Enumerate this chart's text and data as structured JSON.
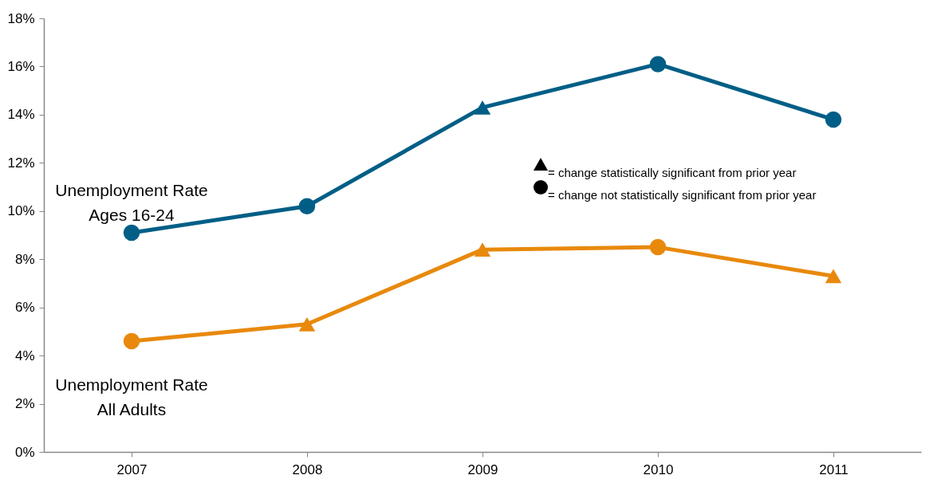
{
  "chart_data": {
    "type": "line",
    "categories": [
      "2007",
      "2008",
      "2009",
      "2010",
      "2011"
    ],
    "series": [
      {
        "name": "Unemployment Rate\nAges 16-24",
        "color": "#005e86",
        "values": [
          9.1,
          10.2,
          14.3,
          16.1,
          13.8
        ],
        "marker": [
          "circle",
          "circle",
          "triangle",
          "circle",
          "circle"
        ]
      },
      {
        "name": "Unemployment Rate\nAll Adults",
        "color": "#e8890c",
        "values": [
          4.6,
          5.3,
          8.4,
          8.5,
          7.3
        ],
        "marker": [
          "circle",
          "triangle",
          "triangle",
          "circle",
          "triangle"
        ]
      }
    ],
    "ylim": [
      0,
      18
    ],
    "yticks": [
      {
        "value": 0,
        "label": "0%"
      },
      {
        "value": 2,
        "label": "2%"
      },
      {
        "value": 4,
        "label": "4%"
      },
      {
        "value": 6,
        "label": "6%"
      },
      {
        "value": 8,
        "label": "8%"
      },
      {
        "value": 10,
        "label": "10%"
      },
      {
        "value": 12,
        "label": "12%"
      },
      {
        "value": 14,
        "label": "14%"
      },
      {
        "value": 16,
        "label": "16%"
      },
      {
        "value": 18,
        "label": "18%"
      }
    ],
    "annotations": [
      "= change statistically significant  from prior year",
      "= change not statistically significant from prior year"
    ],
    "grid": false
  }
}
